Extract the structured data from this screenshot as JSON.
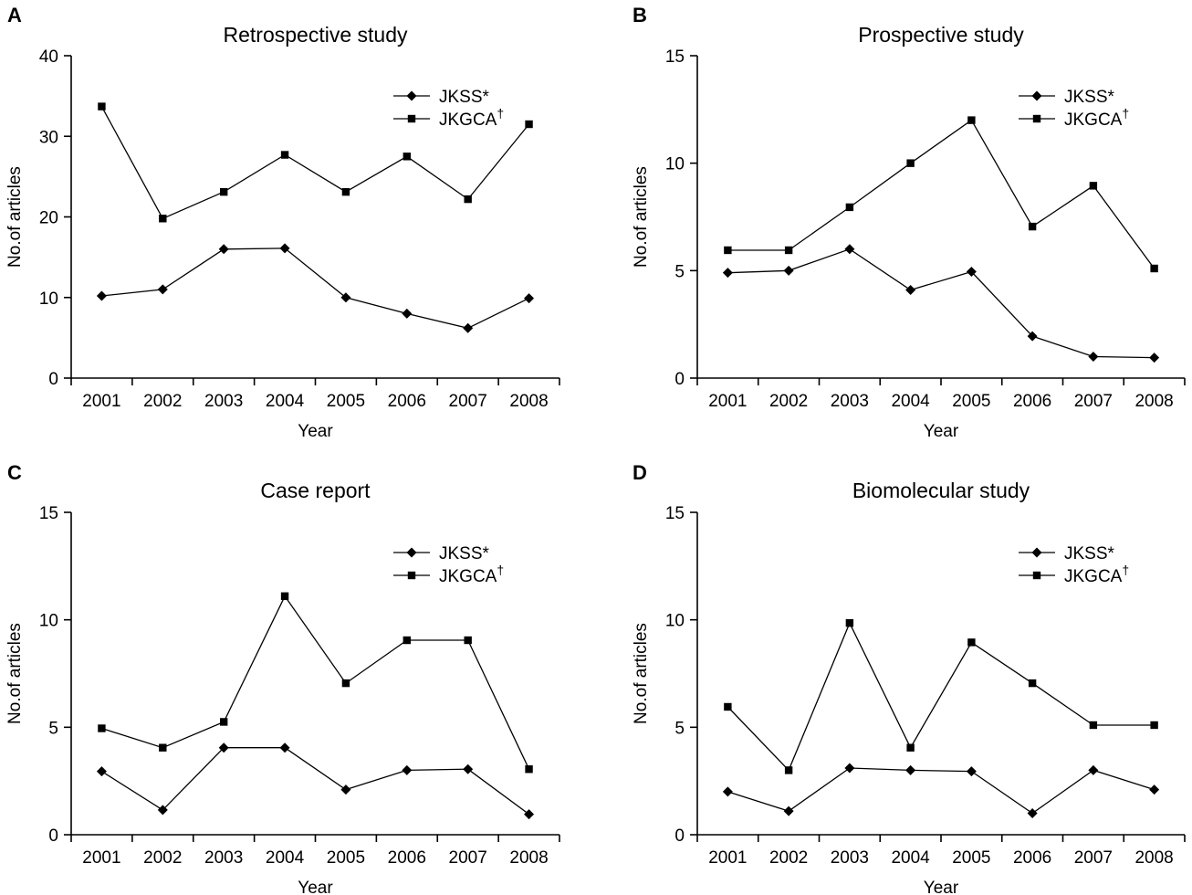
{
  "chart_data": [
    {
      "type": "line",
      "panel": "A",
      "title": "Retrospective study",
      "xlabel": "Year",
      "ylabel": "No.of articles",
      "categories": [
        "2001",
        "2002",
        "2003",
        "2004",
        "2005",
        "2006",
        "2007",
        "2008"
      ],
      "ylim": [
        0,
        40
      ],
      "yticks": [
        0,
        10,
        20,
        30,
        40
      ],
      "legend_position": "top-right",
      "series": [
        {
          "name": "JKSS*",
          "marker": "diamond",
          "values": [
            10.2,
            11,
            16,
            16.1,
            10,
            8,
            6.2,
            9.9
          ]
        },
        {
          "name": "JKGCA†",
          "marker": "square",
          "values": [
            33.7,
            19.8,
            23.1,
            27.7,
            23.1,
            27.5,
            22.2,
            31.5
          ]
        }
      ]
    },
    {
      "type": "line",
      "panel": "B",
      "title": "Prospective study",
      "xlabel": "Year",
      "ylabel": "No.of articles",
      "categories": [
        "2001",
        "2002",
        "2003",
        "2004",
        "2005",
        "2006",
        "2007",
        "2008"
      ],
      "ylim": [
        0,
        15
      ],
      "yticks": [
        0,
        5,
        10,
        15
      ],
      "legend_position": "top-right",
      "series": [
        {
          "name": "JKSS*",
          "marker": "diamond",
          "values": [
            4.9,
            5,
            6,
            4.1,
            4.95,
            1.95,
            1,
            0.95
          ]
        },
        {
          "name": "JKGCA†",
          "marker": "square",
          "values": [
            5.95,
            5.95,
            7.95,
            10,
            12,
            7.05,
            8.95,
            5.1
          ]
        }
      ]
    },
    {
      "type": "line",
      "panel": "C",
      "title": "Case report",
      "xlabel": "Year",
      "ylabel": "No.of articles",
      "categories": [
        "2001",
        "2002",
        "2003",
        "2004",
        "2005",
        "2006",
        "2007",
        "2008"
      ],
      "ylim": [
        0,
        15
      ],
      "yticks": [
        0,
        5,
        10,
        15
      ],
      "legend_position": "top-right",
      "series": [
        {
          "name": "JKSS*",
          "marker": "diamond",
          "values": [
            2.95,
            1.15,
            4.05,
            4.05,
            2.1,
            3,
            3.05,
            0.95
          ]
        },
        {
          "name": "JKGCA†",
          "marker": "square",
          "values": [
            4.95,
            4.05,
            5.25,
            11.1,
            7.05,
            9.05,
            9.05,
            3.05
          ]
        }
      ]
    },
    {
      "type": "line",
      "panel": "D",
      "title": "Biomolecular study",
      "xlabel": "Year",
      "ylabel": "No.of articles",
      "categories": [
        "2001",
        "2002",
        "2003",
        "2004",
        "2005",
        "2006",
        "2007",
        "2008"
      ],
      "ylim": [
        0,
        15
      ],
      "yticks": [
        0,
        5,
        10,
        15
      ],
      "legend_position": "top-right",
      "series": [
        {
          "name": "JKSS*",
          "marker": "diamond",
          "values": [
            2,
            1.1,
            3.1,
            3,
            2.95,
            1,
            3,
            2.1
          ]
        },
        {
          "name": "JKGCA†",
          "marker": "square",
          "values": [
            5.95,
            3,
            9.85,
            4.05,
            8.95,
            7.05,
            5.1,
            5.1
          ]
        }
      ]
    }
  ]
}
